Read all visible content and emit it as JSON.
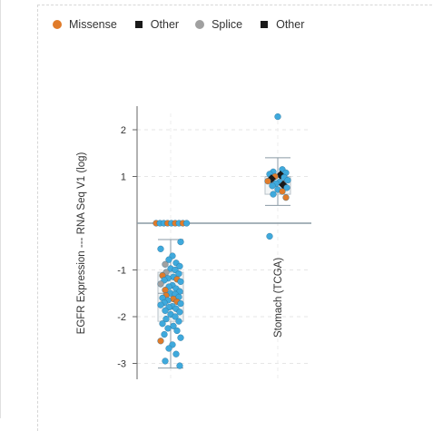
{
  "legend": [
    {
      "label": "Missense",
      "shape": "circle",
      "color": "#e07b2a"
    },
    {
      "label": "Other",
      "shape": "square",
      "color": "#1a1a1a"
    },
    {
      "label": "Splice",
      "shape": "circle",
      "color": "#a0a0a0"
    },
    {
      "label": "Other",
      "shape": "square",
      "color": "#1a1a1a"
    }
  ],
  "chart_data": {
    "type": "scatter",
    "title": "",
    "ylabel": "EGFR Expression --- RNA Seq V1 (log)",
    "xlabel": "",
    "ylim": [
      -3.2,
      2.5
    ],
    "yticks": [
      -3,
      -2,
      -1,
      1,
      2
    ],
    "grid": true,
    "legend_position": "top-left",
    "colors": {
      "default": "#3fa9dc",
      "missense": "#e07b2a",
      "splice": "#a0a0a0",
      "other": "#1a1a1a"
    },
    "categories": [
      {
        "label": "",
        "box": {
          "min": -3.1,
          "q1": -2.1,
          "median": -1.5,
          "q3": -1.05,
          "max": -0.35
        },
        "points": [
          {
            "y": 0.0,
            "type": "missense"
          },
          {
            "y": 0.0,
            "type": "default"
          },
          {
            "y": 0.0,
            "type": "default"
          },
          {
            "y": 0.0,
            "type": "missense"
          },
          {
            "y": 0.0,
            "type": "default"
          },
          {
            "y": 0.0,
            "type": "missense"
          },
          {
            "y": 0.0,
            "type": "default"
          },
          {
            "y": 0.0,
            "type": "missense"
          },
          {
            "y": 0.0,
            "type": "default"
          },
          {
            "y": -0.4,
            "type": "default"
          },
          {
            "y": -0.55,
            "type": "default"
          },
          {
            "y": -0.7,
            "type": "default"
          },
          {
            "y": -0.78,
            "type": "default"
          },
          {
            "y": -0.85,
            "type": "default"
          },
          {
            "y": -0.88,
            "type": "splice"
          },
          {
            "y": -0.92,
            "type": "default"
          },
          {
            "y": -0.97,
            "type": "default"
          },
          {
            "y": -1.0,
            "type": "default"
          },
          {
            "y": -1.05,
            "type": "splice"
          },
          {
            "y": -1.08,
            "type": "default"
          },
          {
            "y": -1.12,
            "type": "missense"
          },
          {
            "y": -1.15,
            "type": "default"
          },
          {
            "y": -1.18,
            "type": "default"
          },
          {
            "y": -1.2,
            "type": "missense"
          },
          {
            "y": -1.22,
            "type": "default"
          },
          {
            "y": -1.25,
            "type": "default"
          },
          {
            "y": -1.3,
            "type": "splice"
          },
          {
            "y": -1.33,
            "type": "default"
          },
          {
            "y": -1.36,
            "type": "default"
          },
          {
            "y": -1.4,
            "type": "default"
          },
          {
            "y": -1.43,
            "type": "missense"
          },
          {
            "y": -1.46,
            "type": "default"
          },
          {
            "y": -1.5,
            "type": "default"
          },
          {
            "y": -1.52,
            "type": "default"
          },
          {
            "y": -1.55,
            "type": "missense"
          },
          {
            "y": -1.58,
            "type": "default"
          },
          {
            "y": -1.6,
            "type": "default"
          },
          {
            "y": -1.62,
            "type": "missense"
          },
          {
            "y": -1.65,
            "type": "default"
          },
          {
            "y": -1.68,
            "type": "missense"
          },
          {
            "y": -1.7,
            "type": "default"
          },
          {
            "y": -1.72,
            "type": "default"
          },
          {
            "y": -1.75,
            "type": "default"
          },
          {
            "y": -1.78,
            "type": "default"
          },
          {
            "y": -1.8,
            "type": "default"
          },
          {
            "y": -1.83,
            "type": "default"
          },
          {
            "y": -1.87,
            "type": "default"
          },
          {
            "y": -1.9,
            "type": "default"
          },
          {
            "y": -1.95,
            "type": "default"
          },
          {
            "y": -2.0,
            "type": "default"
          },
          {
            "y": -2.05,
            "type": "default"
          },
          {
            "y": -2.1,
            "type": "default"
          },
          {
            "y": -2.15,
            "type": "default"
          },
          {
            "y": -2.2,
            "type": "default"
          },
          {
            "y": -2.25,
            "type": "default"
          },
          {
            "y": -2.3,
            "type": "default"
          },
          {
            "y": -2.38,
            "type": "default"
          },
          {
            "y": -2.45,
            "type": "default"
          },
          {
            "y": -2.52,
            "type": "missense"
          },
          {
            "y": -2.6,
            "type": "default"
          },
          {
            "y": -2.68,
            "type": "default"
          },
          {
            "y": -2.8,
            "type": "default"
          },
          {
            "y": -2.95,
            "type": "default"
          },
          {
            "y": -3.05,
            "type": "default"
          }
        ]
      },
      {
        "label": "Stomach (TCGA)",
        "box": {
          "min": 0.38,
          "q1": 0.62,
          "median": 0.9,
          "q3": 1.0,
          "max": 1.4
        },
        "points": [
          {
            "y": 2.28,
            "type": "default"
          },
          {
            "y": 1.15,
            "type": "default"
          },
          {
            "y": 1.1,
            "type": "default"
          },
          {
            "y": 1.08,
            "type": "default"
          },
          {
            "y": 1.05,
            "type": "default"
          },
          {
            "y": 1.03,
            "type": "other"
          },
          {
            "y": 1.0,
            "type": "missense"
          },
          {
            "y": 0.98,
            "type": "default"
          },
          {
            "y": 0.95,
            "type": "other"
          },
          {
            "y": 0.92,
            "type": "default"
          },
          {
            "y": 0.9,
            "type": "missense"
          },
          {
            "y": 0.88,
            "type": "default"
          },
          {
            "y": 0.85,
            "type": "default"
          },
          {
            "y": 0.82,
            "type": "other"
          },
          {
            "y": 0.8,
            "type": "default"
          },
          {
            "y": 0.76,
            "type": "default"
          },
          {
            "y": 0.72,
            "type": "default"
          },
          {
            "y": 0.68,
            "type": "missense"
          },
          {
            "y": 0.62,
            "type": "default"
          },
          {
            "y": 0.55,
            "type": "missense"
          },
          {
            "y": -0.28,
            "type": "default"
          }
        ]
      }
    ]
  }
}
